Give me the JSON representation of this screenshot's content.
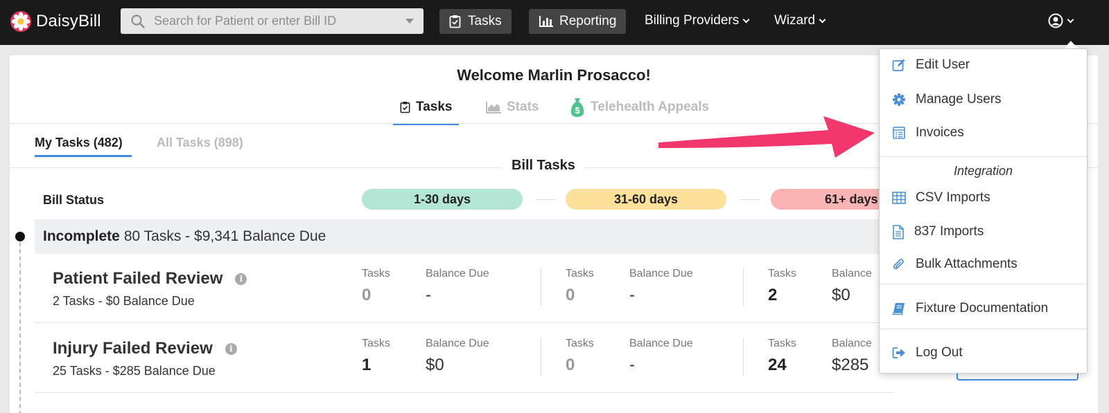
{
  "app": {
    "brand": "DaisyBill"
  },
  "search": {
    "placeholder": "Search for Patient or enter Bill ID"
  },
  "nav": {
    "tasks_label": "Tasks",
    "reporting_label": "Reporting",
    "billing_providers_label": "Billing Providers",
    "wizard_label": "Wizard"
  },
  "page": {
    "welcome": "Welcome Marlin Prosacco!",
    "tabs": [
      {
        "label": "Tasks",
        "active": true
      },
      {
        "label": "Stats",
        "active": false
      },
      {
        "label": "Telehealth Appeals",
        "active": false
      }
    ],
    "subtabs": [
      {
        "label": "My Tasks (482)",
        "active": true
      },
      {
        "label": "All Tasks (898)",
        "active": false
      }
    ],
    "section_title": "Bill Tasks",
    "bill_status_label": "Bill Status",
    "age_buckets": [
      {
        "label": "1-30 days",
        "color": "#b3e6d5"
      },
      {
        "label": "31-60 days",
        "color": "#fde19a"
      },
      {
        "label": "61+ days",
        "color": "#fbb3b3"
      }
    ],
    "group": {
      "name": "Incomplete",
      "summary": "80 Tasks - $9,341 Balance Due"
    },
    "task_rows": [
      {
        "name": "Patient Failed Review",
        "summary": "2 Tasks - $0 Balance Due",
        "tasks_label": "Tasks",
        "balance_label": "Balance Due",
        "balance_label_cut": "Balance",
        "buckets": [
          {
            "tasks": "0",
            "balance": "-"
          },
          {
            "tasks": "0",
            "balance": "-"
          },
          {
            "tasks": "2",
            "balance": "$0"
          }
        ]
      },
      {
        "name": "Injury Failed Review",
        "summary": "25 Tasks - $285 Balance Due",
        "tasks_label": "Tasks",
        "balance_label": "Balance Due",
        "balance_label_cut": "Balance",
        "buckets": [
          {
            "tasks": "1",
            "balance": "$0"
          },
          {
            "tasks": "0",
            "balance": "-"
          },
          {
            "tasks": "24",
            "balance": "$285"
          }
        ]
      }
    ]
  },
  "user_menu": {
    "items_top": [
      {
        "label": "Edit User",
        "icon": "edit-icon"
      },
      {
        "label": "Manage Users",
        "icon": "gear-icon"
      },
      {
        "label": "Invoices",
        "icon": "invoice-icon"
      }
    ],
    "integration_header": "Integration",
    "items_integration": [
      {
        "label": "CSV Imports",
        "icon": "table-icon"
      },
      {
        "label": "837 Imports",
        "icon": "document-icon"
      },
      {
        "label": "Bulk Attachments",
        "icon": "paperclip-icon"
      }
    ],
    "fixture_label": "Fixture Documentation",
    "logout_label": "Log Out"
  },
  "colors": {
    "accent": "#3f8ae0",
    "annotation_arrow": "#f2376d",
    "topbar": "#1a1a1a"
  }
}
